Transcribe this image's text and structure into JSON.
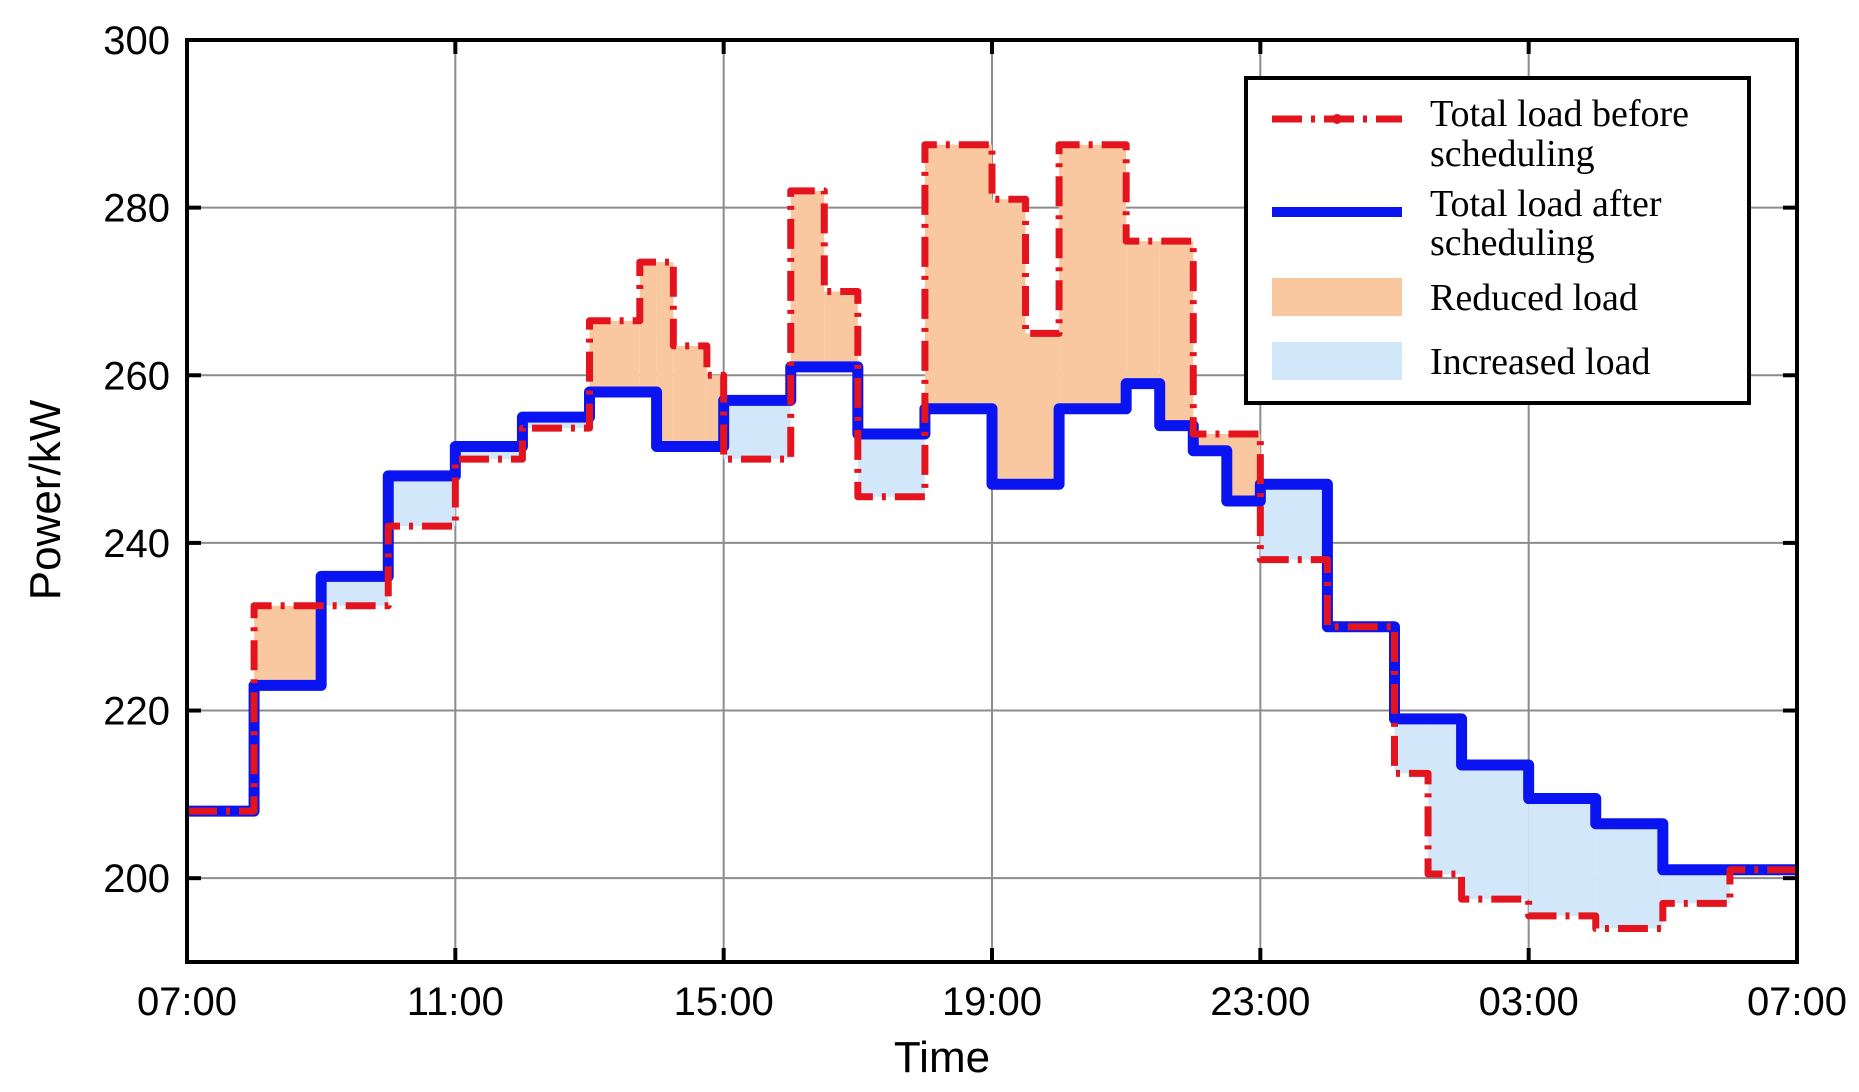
{
  "chart_data": {
    "type": "line",
    "title": "",
    "xlabel": "Time",
    "ylabel": "Power/kW",
    "x_ticks": [
      "07:00",
      "11:00",
      "15:00",
      "19:00",
      "23:00",
      "03:00",
      "07:00"
    ],
    "y_ticks": [
      200,
      220,
      240,
      260,
      280,
      300
    ],
    "xlim_hours": [
      0,
      24
    ],
    "ylim": [
      190,
      300
    ],
    "grid": true,
    "legend_position": "top-right",
    "x_units": "hours after 07:00",
    "series": [
      {
        "name": "Total load before scheduling",
        "color": "#e3141e",
        "style": "dash-dot",
        "steps": [
          [
            0,
            208
          ],
          [
            1,
            232.5
          ],
          [
            2,
            232.5
          ],
          [
            3,
            242
          ],
          [
            4,
            250
          ],
          [
            5,
            253.7
          ],
          [
            6,
            266.5
          ],
          [
            6.75,
            273.5
          ],
          [
            7.25,
            263.5
          ],
          [
            7.75,
            260
          ],
          [
            8,
            250
          ],
          [
            9,
            282
          ],
          [
            9.5,
            270
          ],
          [
            10,
            245.5
          ],
          [
            11,
            287.5
          ],
          [
            12,
            281
          ],
          [
            12.5,
            265
          ],
          [
            13,
            287.5
          ],
          [
            14,
            276
          ],
          [
            15,
            253
          ],
          [
            16,
            238
          ],
          [
            17,
            230
          ],
          [
            18,
            212.5
          ],
          [
            18.5,
            200.5
          ],
          [
            19,
            197.5
          ],
          [
            20,
            195.5
          ],
          [
            21,
            194
          ],
          [
            22,
            197
          ],
          [
            23,
            201
          ]
        ],
        "end_hour": 24
      },
      {
        "name": "Total load after scheduling",
        "color": "#0a14f0",
        "style": "solid",
        "steps": [
          [
            0,
            208
          ],
          [
            1,
            223
          ],
          [
            2,
            236
          ],
          [
            3,
            248
          ],
          [
            4,
            251.5
          ],
          [
            5,
            255
          ],
          [
            6,
            258
          ],
          [
            7,
            251.5
          ],
          [
            8,
            257
          ],
          [
            9,
            261
          ],
          [
            10,
            253
          ],
          [
            11,
            256
          ],
          [
            12,
            247
          ],
          [
            13,
            256
          ],
          [
            14,
            259
          ],
          [
            14.5,
            254
          ],
          [
            15,
            251
          ],
          [
            15.5,
            245
          ],
          [
            16,
            247
          ],
          [
            17,
            230
          ],
          [
            18,
            219
          ],
          [
            19,
            213.5
          ],
          [
            20,
            209.5
          ],
          [
            21,
            206.5
          ],
          [
            22,
            201
          ]
        ],
        "end_hour": 24
      }
    ],
    "fills": [
      {
        "name": "Reduced load",
        "color": "#fac8a0"
      },
      {
        "name": "Increased load",
        "color": "#d2e8fa"
      }
    ]
  },
  "legend": {
    "before_line1": "Total load before",
    "before_line2": "scheduling",
    "after_line1": "Total load after",
    "after_line2": "scheduling",
    "reduced": "Reduced load",
    "increased": "Increased load"
  }
}
